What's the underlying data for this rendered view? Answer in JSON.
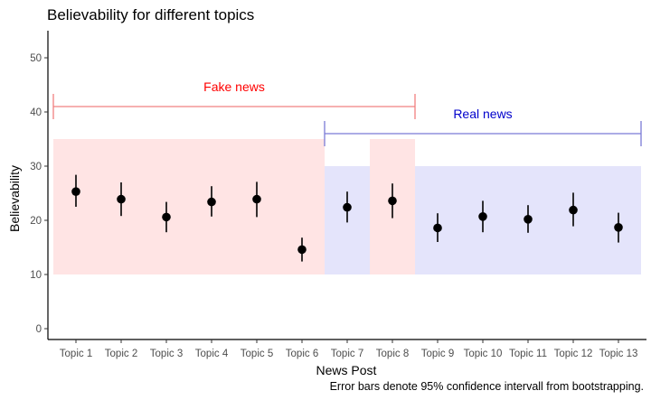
{
  "chart_data": {
    "type": "scatter",
    "title": "Believability for different topics",
    "xlabel": "News Post",
    "ylabel": "Believability",
    "caption": "Error bars denote 95% confidence intervall from bootstrapping.",
    "ylim": [
      -2,
      55
    ],
    "yticks": [
      0,
      10,
      20,
      30,
      40,
      50
    ],
    "grid": false,
    "categories": [
      "Topic 1",
      "Topic 2",
      "Topic 3",
      "Topic 4",
      "Topic 5",
      "Topic 6",
      "Topic 7",
      "Topic 8",
      "Topic 9",
      "Topic 10",
      "Topic 11",
      "Topic 12",
      "Topic 13"
    ],
    "values": [
      25.3,
      23.9,
      20.6,
      23.4,
      23.9,
      14.6,
      22.4,
      23.6,
      18.6,
      20.7,
      20.2,
      21.9,
      18.7
    ],
    "ci_lower": [
      22.5,
      20.8,
      17.8,
      20.7,
      20.6,
      12.4,
      19.6,
      20.4,
      16.0,
      17.8,
      17.7,
      18.9,
      15.9
    ],
    "ci_upper": [
      28.4,
      27.0,
      23.4,
      26.3,
      27.1,
      16.8,
      25.3,
      26.8,
      21.3,
      23.6,
      22.8,
      25.1,
      21.4
    ],
    "point_color": "#000000",
    "groups": [
      {
        "label": "Fake news",
        "color": "#ff0000",
        "bracket_color": "#f08080",
        "fill": "#ffe4e4",
        "bracket_y": 41,
        "bracket_from": 0.5,
        "bracket_to": 8.5,
        "bands": [
          {
            "x_from": 0.5,
            "x_to": 6.5,
            "y_from": 10,
            "y_to": 35
          },
          {
            "x_from": 7.5,
            "x_to": 8.5,
            "y_from": 10,
            "y_to": 35
          }
        ]
      },
      {
        "label": "Real news",
        "color": "#0000cc",
        "bracket_color": "#7b7bd6",
        "fill": "#e4e4fb",
        "bracket_y": 36,
        "bracket_from": 6.5,
        "bracket_to": 13.5,
        "bands": [
          {
            "x_from": 6.5,
            "x_to": 7.5,
            "y_from": 10,
            "y_to": 30
          },
          {
            "x_from": 8.5,
            "x_to": 13.5,
            "y_from": 10,
            "y_to": 30
          }
        ]
      }
    ]
  }
}
